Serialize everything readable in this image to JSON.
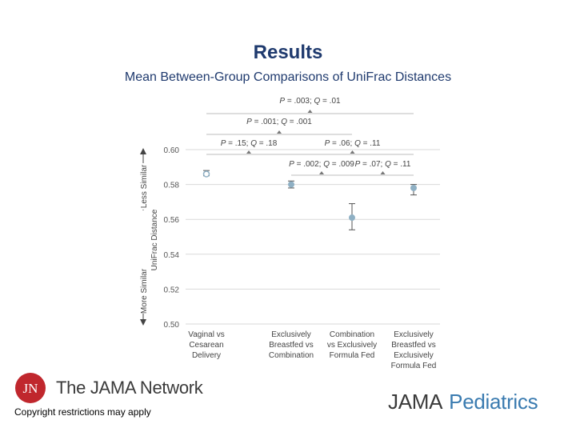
{
  "slide": {
    "title": "Results",
    "subtitle": "Mean Between-Group Comparisons of UniFrac Distances"
  },
  "chart_data": {
    "type": "scatter",
    "ylabel": "UniFrac Distance",
    "ylabel_top": "Less Similar",
    "ylabel_bottom": "More Similar",
    "ylim": [
      0.5,
      0.6
    ],
    "yticks": [
      "0.50",
      "0.52",
      "0.54",
      "0.56",
      "0.58",
      "0.60"
    ],
    "grid": true,
    "categories": [
      [
        "Vaginal vs",
        "Cesarean",
        "Delivery"
      ],
      [
        "Exclusively",
        "Breastfed vs",
        "Combination"
      ],
      [
        "Combination",
        "vs Exclusively",
        "Formula Fed"
      ],
      [
        "Exclusively",
        "Breastfed vs",
        "Exclusively",
        "Formula Fed"
      ]
    ],
    "points": [
      {
        "mean": 0.586,
        "lower": 0.585,
        "upper": 0.588,
        "marker": "open"
      },
      {
        "mean": 0.58,
        "lower": 0.578,
        "upper": 0.582,
        "marker": "filled"
      },
      {
        "mean": 0.561,
        "lower": 0.554,
        "upper": 0.569,
        "marker": "filled"
      },
      {
        "mean": 0.578,
        "lower": 0.574,
        "upper": 0.58,
        "marker": "filled"
      }
    ],
    "comparisons": [
      {
        "from": 0,
        "to": 3,
        "p_value": ".003",
        "q_value": ".01"
      },
      {
        "from": 0,
        "to": 2,
        "p_value": ".001",
        "q_value": ".001"
      },
      {
        "from": 0,
        "to": 1,
        "p_value": ".15",
        "q_value": ".18"
      },
      {
        "from": 1,
        "to": 3,
        "p_value": ".06",
        "q_value": ".11"
      },
      {
        "from": 1,
        "to": 2,
        "p_value": ".002",
        "q_value": ".009"
      },
      {
        "from": 2,
        "to": 3,
        "p_value": ".07",
        "q_value": ".11"
      }
    ]
  },
  "footer": {
    "network_logo_mark": "JN",
    "network_logo_text": "The JAMA Network",
    "copyright": "Copyright restrictions may apply",
    "journal_logo_primary": "JAMA",
    "journal_logo_secondary": "Pediatrics"
  },
  "colors": {
    "title": "#1f3a6e",
    "marker": "#8fb0c4",
    "gridline": "#d9d9d9",
    "tick_text": "#555555",
    "jn_red": "#c0272d",
    "pediatrics_blue": "#3a7bb0"
  }
}
